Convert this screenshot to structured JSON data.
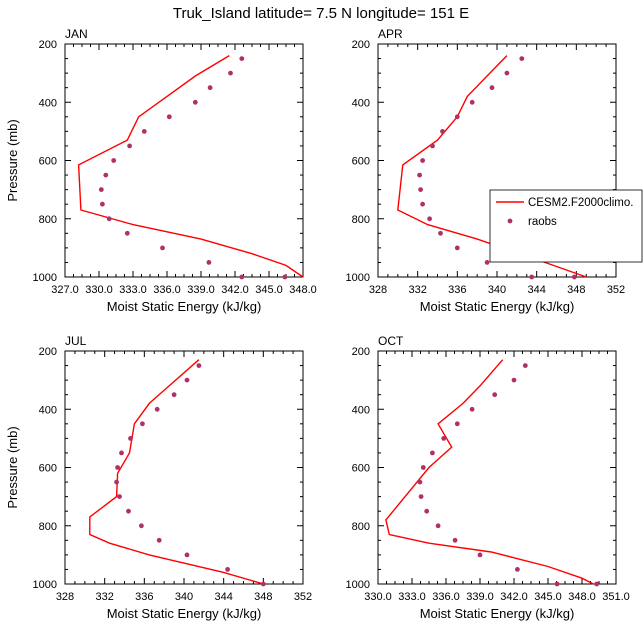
{
  "title": "Truk_Island  latitude= 7.5 N longitude= 151 E",
  "legend": {
    "model_label": "CESM2.F2000climo.",
    "obs_label": "raobs",
    "model_color": "#ff0000",
    "obs_color": "#b0306a"
  },
  "chart_data": [
    {
      "type": "line",
      "panel": "JAN",
      "title": "JAN",
      "xlabel": "Moist Static Energy (kJ/kg)",
      "ylabel": "Pressure (mb)",
      "xlim": [
        327.0,
        348.0
      ],
      "ylim": [
        200,
        1000
      ],
      "xticks": [
        "327.0",
        "330.0",
        "333.0",
        "336.0",
        "339.0",
        "342.0",
        "345.0",
        "348.0"
      ],
      "yticks": [
        "200",
        "400",
        "600",
        "800",
        "1000"
      ],
      "series": [
        {
          "name": "CESM2.F2000climo.",
          "style": "line",
          "x": [
            341.5,
            338.5,
            336.0,
            333.5,
            332.5,
            328.2,
            328.4,
            333.0,
            339.0,
            343.5,
            346.5,
            348.0
          ],
          "y": [
            240,
            310,
            380,
            450,
            530,
            615,
            770,
            820,
            870,
            920,
            960,
            1000
          ]
        },
        {
          "name": "raobs",
          "style": "markers",
          "x": [
            342.6,
            341.6,
            339.8,
            338.5,
            336.2,
            334.0,
            332.7,
            331.3,
            330.6,
            330.2,
            330.3,
            330.9,
            332.5,
            335.6,
            339.7,
            342.6,
            346.4
          ],
          "y": [
            250,
            300,
            350,
            400,
            450,
            500,
            550,
            600,
            650,
            700,
            750,
            800,
            850,
            900,
            950,
            1000,
            1000
          ]
        }
      ]
    },
    {
      "type": "line",
      "panel": "APR",
      "title": "APR",
      "xlabel": "Moist Static Energy (kJ/kg)",
      "ylabel": "",
      "xlim": [
        328,
        352
      ],
      "ylim": [
        200,
        1000
      ],
      "xticks": [
        "328",
        "332",
        "336",
        "340",
        "344",
        "348",
        "352"
      ],
      "yticks": [
        "200",
        "400",
        "600",
        "800",
        "1000"
      ],
      "series": [
        {
          "name": "CESM2.F2000climo.",
          "style": "line",
          "x": [
            341.0,
            339.0,
            337.0,
            336.0,
            334.0,
            330.5,
            330.0,
            333.0,
            338.0,
            344.0,
            349.0
          ],
          "y": [
            240,
            310,
            380,
            450,
            530,
            615,
            770,
            820,
            870,
            940,
            1000
          ]
        },
        {
          "name": "raobs",
          "style": "markers",
          "x": [
            342.5,
            341.0,
            339.5,
            337.5,
            336.0,
            334.5,
            333.5,
            332.5,
            332.2,
            332.3,
            332.5,
            333.2,
            334.3,
            336.0,
            339.0,
            343.5,
            347.8
          ],
          "y": [
            250,
            300,
            350,
            400,
            450,
            500,
            550,
            600,
            650,
            700,
            750,
            800,
            850,
            900,
            950,
            1000,
            1000
          ]
        }
      ]
    },
    {
      "type": "line",
      "panel": "JUL",
      "title": "JUL",
      "xlabel": "Moist Static Energy (kJ/kg)",
      "ylabel": "Pressure (mb)",
      "xlim": [
        328,
        352
      ],
      "ylim": [
        200,
        1000
      ],
      "xticks": [
        "328",
        "332",
        "336",
        "340",
        "344",
        "348",
        "352"
      ],
      "yticks": [
        "200",
        "400",
        "600",
        "800",
        "1000"
      ],
      "series": [
        {
          "name": "CESM2.F2000climo.",
          "style": "line",
          "x": [
            341.5,
            338.5,
            336.5,
            335.0,
            334.5,
            333.3,
            333.2,
            330.5,
            330.5,
            332.5,
            336.5,
            344.0,
            348.0
          ],
          "y": [
            230,
            320,
            380,
            450,
            550,
            620,
            700,
            770,
            830,
            860,
            900,
            960,
            1000
          ]
        },
        {
          "name": "raobs",
          "style": "markers",
          "x": [
            341.5,
            340.3,
            339.0,
            337.3,
            335.8,
            334.6,
            333.7,
            333.3,
            333.2,
            333.5,
            334.4,
            335.7,
            337.5,
            340.3,
            344.4,
            348.0
          ],
          "y": [
            250,
            300,
            350,
            400,
            450,
            500,
            550,
            600,
            650,
            700,
            750,
            800,
            850,
            900,
            950,
            1000
          ]
        }
      ]
    },
    {
      "type": "line",
      "panel": "OCT",
      "title": "OCT",
      "xlabel": "Moist Static Energy (kJ/kg)",
      "ylabel": "",
      "xlim": [
        330.0,
        351.0
      ],
      "ylim": [
        200,
        1000
      ],
      "xticks": [
        "330.0",
        "333.0",
        "336.0",
        "339.0",
        "342.0",
        "345.0",
        "348.0",
        "351.0"
      ],
      "yticks": [
        "200",
        "400",
        "600",
        "800",
        "1000"
      ],
      "series": [
        {
          "name": "CESM2.F2000climo.",
          "style": "line",
          "x": [
            341.0,
            339.0,
            337.5,
            335.3,
            336.5,
            334.5,
            330.7,
            331.0,
            334.5,
            340.0,
            345.0,
            348.0,
            349.0
          ],
          "y": [
            230,
            320,
            380,
            450,
            530,
            600,
            780,
            830,
            860,
            890,
            940,
            980,
            1000
          ]
        },
        {
          "name": "raobs",
          "style": "markers",
          "x": [
            343.0,
            342.0,
            340.3,
            338.3,
            337.0,
            335.8,
            334.8,
            334.0,
            333.7,
            333.8,
            334.3,
            335.3,
            336.8,
            339.0,
            342.3,
            345.8,
            349.3
          ],
          "y": [
            250,
            300,
            350,
            400,
            450,
            500,
            550,
            600,
            650,
            700,
            750,
            800,
            850,
            900,
            950,
            1000,
            1000
          ]
        }
      ]
    }
  ]
}
